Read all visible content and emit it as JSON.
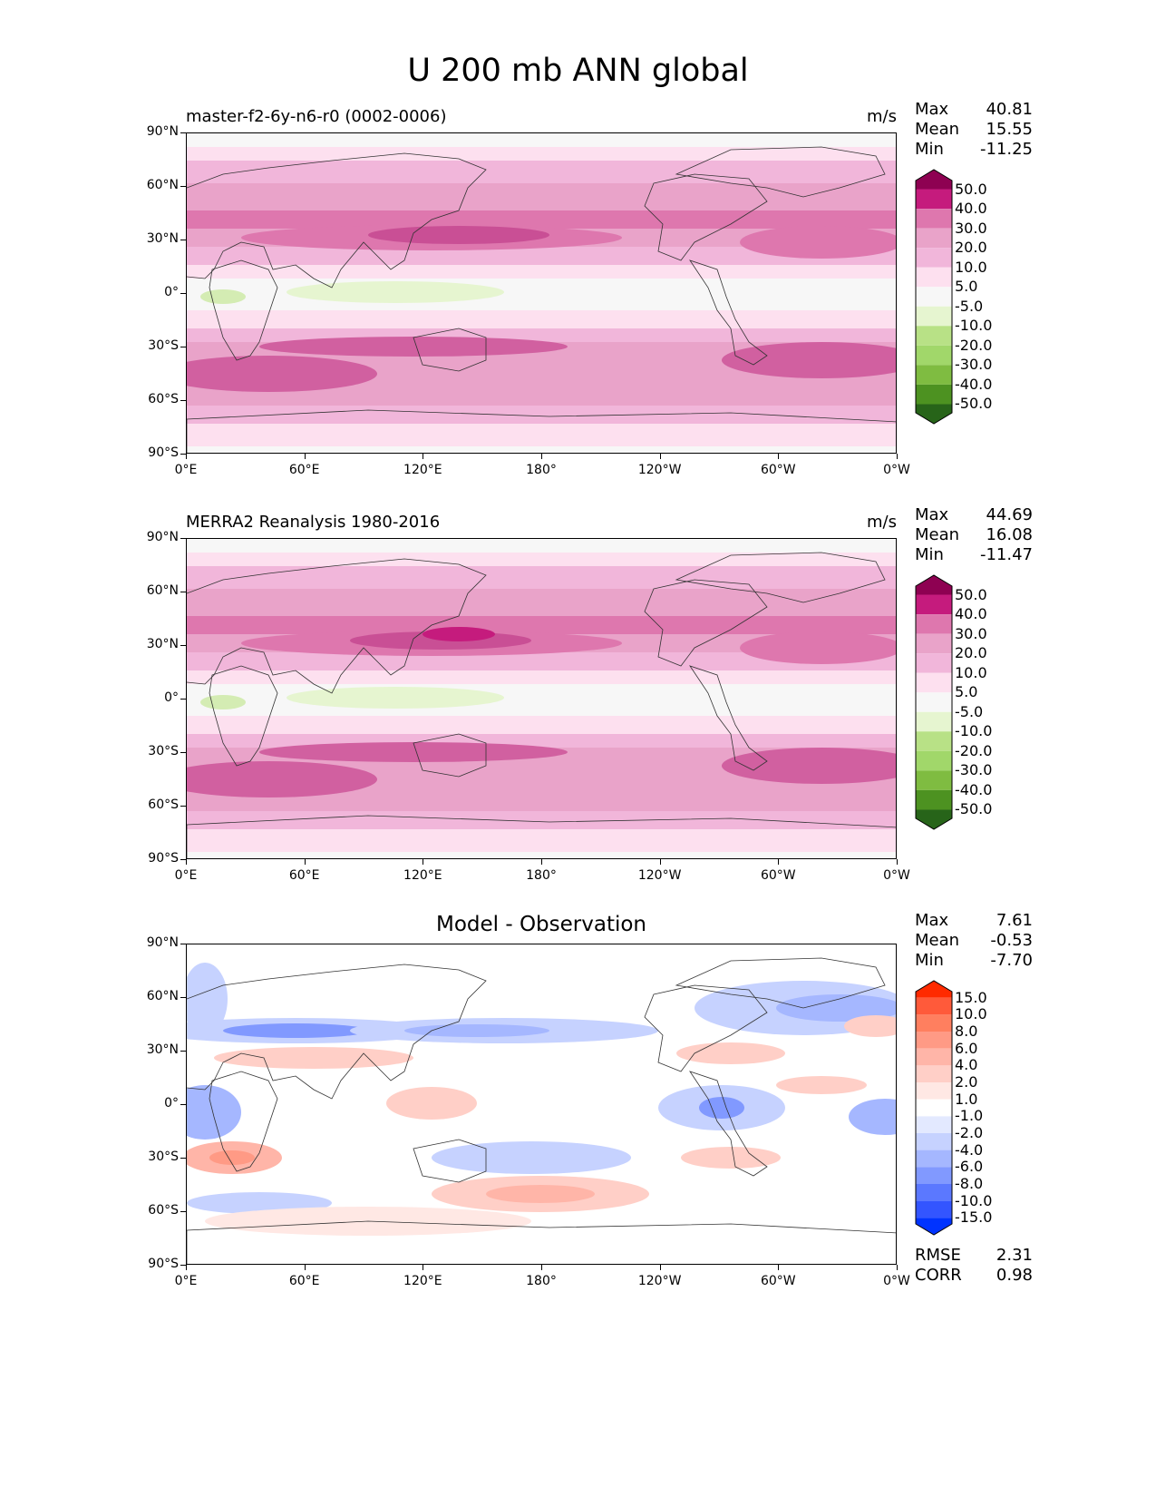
{
  "figure": {
    "title": "U 200 mb ANN global",
    "lat_ticks": [
      "90°N",
      "60°N",
      "30°N",
      "0°",
      "30°S",
      "60°S",
      "90°S"
    ],
    "lon_ticks": [
      "0°E",
      "60°E",
      "120°E",
      "180°",
      "120°W",
      "60°W",
      "0°W"
    ]
  },
  "panels": [
    {
      "title": "master-f2-6y-n6-r0 (0002-0006)",
      "units": "m/s",
      "stats": {
        "Max": "40.81",
        "Mean": "15.55",
        "Min": "-11.25"
      },
      "colorbar": {
        "labels": [
          "50.0",
          "40.0",
          "30.0",
          "20.0",
          "10.0",
          "5.0",
          "-5.0",
          "-10.0",
          "-20.0",
          "-30.0",
          "-40.0",
          "-50.0"
        ],
        "colors": [
          "#8e0152",
          "#c51b7d",
          "#de77ae",
          "#e9a3c9",
          "#f1b6da",
          "#fde0ef",
          "#f7f7f7",
          "#e6f5d0",
          "#b8e186",
          "#a1d76a",
          "#7fbc41",
          "#4d9221",
          "#276419"
        ]
      }
    },
    {
      "title": "MERRA2 Reanalysis 1980-2016",
      "units": "m/s",
      "stats": {
        "Max": "44.69",
        "Mean": "16.08",
        "Min": "-11.47"
      },
      "colorbar": {
        "labels": [
          "50.0",
          "40.0",
          "30.0",
          "20.0",
          "10.0",
          "5.0",
          "-5.0",
          "-10.0",
          "-20.0",
          "-30.0",
          "-40.0",
          "-50.0"
        ],
        "colors": [
          "#8e0152",
          "#c51b7d",
          "#de77ae",
          "#e9a3c9",
          "#f1b6da",
          "#fde0ef",
          "#f7f7f7",
          "#e6f5d0",
          "#b8e186",
          "#a1d76a",
          "#7fbc41",
          "#4d9221",
          "#276419"
        ]
      }
    },
    {
      "title": "Model - Observation",
      "units": "",
      "stats": {
        "Max": "7.61",
        "Mean": "-0.53",
        "Min": "-7.70"
      },
      "metrics": {
        "RMSE": "2.31",
        "CORR": "0.98"
      },
      "colorbar": {
        "labels": [
          "15.0",
          "10.0",
          "8.0",
          "6.0",
          "4.0",
          "2.0",
          "1.0",
          "-1.0",
          "-2.0",
          "-4.0",
          "-6.0",
          "-8.0",
          "-10.0",
          "-15.0"
        ],
        "colors": [
          "#ff2a00",
          "#ff5a3a",
          "#ff7f5f",
          "#ff9a85",
          "#ffb5a8",
          "#ffcfc7",
          "#ffe8e4",
          "#ffffff",
          "#e3e9ff",
          "#c6d2ff",
          "#a5b7ff",
          "#8199ff",
          "#5b78ff",
          "#3355ff",
          "#0033ff"
        ]
      }
    }
  ]
}
